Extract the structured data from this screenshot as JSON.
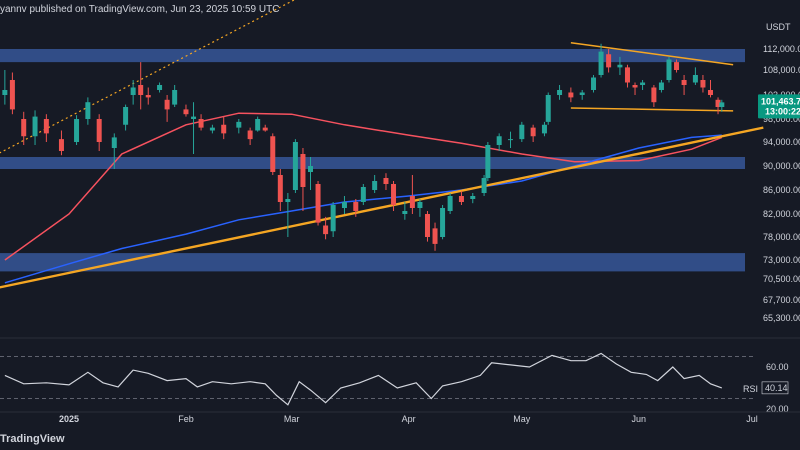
{
  "header": {
    "publish_note": "yannv published on TradingView.com, Jun 23, 2025 10:59 UTC"
  },
  "footer": {
    "brand": "TradingView"
  },
  "colors": {
    "background": "#161a25",
    "bull": "#26a69a",
    "bear": "#ef5350",
    "zone": "#3b5fa8",
    "ma_blue": "#2962ff",
    "ma_orange": "#f7525f",
    "trendline": "#f5a623",
    "rsi": "#d1d4dc",
    "price_tag": "#089981"
  },
  "chart_data": [
    {
      "type": "candlestick",
      "currency_label": "USDT",
      "x_tick_labels": [
        "2025",
        "Feb",
        "Mar",
        "Apr",
        "May",
        "Jun",
        "Jul"
      ],
      "y_tick_labels": [
        "112,000.00",
        "108,000.00",
        "103,000.00",
        "98,000.00",
        "94,000.00",
        "90,000.00",
        "86,000.00",
        "82,000.00",
        "78,000.00",
        "73,000.00",
        "70,500.00",
        "67,700.00",
        "65,300.00"
      ],
      "y_tick_values": [
        112000,
        108000,
        103000,
        98000,
        94000,
        90000,
        86000,
        82000,
        78000,
        73000,
        70500,
        67700,
        65300
      ],
      "last_price_label": "101,463.7",
      "countdown_label": "13:00:22",
      "last_price": 101463.7,
      "resistance_zones": [
        {
          "low": 109500,
          "high": 112000
        },
        {
          "low": 89500,
          "high": 91500
        },
        {
          "low": 71500,
          "high": 74500
        }
      ],
      "pattern": {
        "upper": [
          [
            "2025-05-14",
            112600
          ],
          [
            "2025-06-26",
            109000
          ]
        ],
        "lower": [
          [
            "2025-05-14",
            100300
          ],
          [
            "2025-06-26",
            99700
          ]
        ]
      },
      "ascending_trendline": [
        [
          "2024-12-10",
          69000
        ],
        [
          "2025-07-04",
          96500
        ]
      ],
      "channel_dotted": [
        [
          "2024-12-10",
          91000
        ],
        [
          "2025-04-26",
          127000
        ]
      ],
      "ma_blue": [
        [
          "2024-12-15",
          70000
        ],
        [
          "2025-01-01",
          72500
        ],
        [
          "2025-01-15",
          75500
        ],
        [
          "2025-02-01",
          78500
        ],
        [
          "2025-02-15",
          81000
        ],
        [
          "2025-03-01",
          82500
        ],
        [
          "2025-03-15",
          84000
        ],
        [
          "2025-04-01",
          85000
        ],
        [
          "2025-04-15",
          86000
        ],
        [
          "2025-05-01",
          87500
        ],
        [
          "2025-05-15",
          90000
        ],
        [
          "2025-06-01",
          93000
        ],
        [
          "2025-06-15",
          94800
        ],
        [
          "2025-06-23",
          95200
        ]
      ],
      "ma_orange": [
        [
          "2024-12-15",
          73000
        ],
        [
          "2025-01-01",
          82000
        ],
        [
          "2025-01-15",
          92000
        ],
        [
          "2025-02-01",
          97000
        ],
        [
          "2025-02-15",
          99200
        ],
        [
          "2025-03-01",
          99000
        ],
        [
          "2025-03-15",
          97000
        ],
        [
          "2025-04-01",
          95200
        ],
        [
          "2025-04-15",
          93800
        ],
        [
          "2025-05-01",
          92000
        ],
        [
          "2025-05-15",
          90700
        ],
        [
          "2025-06-01",
          90900
        ],
        [
          "2025-06-15",
          92800
        ],
        [
          "2025-06-23",
          94800
        ]
      ],
      "candles": [
        [
          "2024-12-15",
          103000,
          108000,
          101000,
          104000
        ],
        [
          "2024-12-17",
          106000,
          107500,
          99000,
          100000
        ],
        [
          "2024-12-20",
          98000,
          99500,
          93500,
          95000
        ],
        [
          "2024-12-23",
          95000,
          99800,
          93500,
          98500
        ],
        [
          "2024-12-26",
          98000,
          99000,
          94000,
          95500
        ],
        [
          "2024-12-30",
          94500,
          96000,
          91800,
          92500
        ],
        [
          "2025-01-03",
          94000,
          98800,
          93500,
          98000
        ],
        [
          "2025-01-06",
          98000,
          102500,
          97000,
          101500
        ],
        [
          "2025-01-09",
          98000,
          99000,
          92500,
          94000
        ],
        [
          "2025-01-13",
          93000,
          95500,
          89500,
          94800
        ],
        [
          "2025-01-16",
          97000,
          101000,
          96000,
          100500
        ],
        [
          "2025-01-18",
          103000,
          106000,
          101000,
          104500
        ],
        [
          "2025-01-20",
          105000,
          109500,
          100000,
          103000
        ],
        [
          "2025-01-22",
          103000,
          104500,
          101000,
          102500
        ],
        [
          "2025-01-25",
          104000,
          105500,
          103500,
          105000
        ],
        [
          "2025-01-27",
          102000,
          103000,
          97500,
          100000
        ],
        [
          "2025-01-29",
          101000,
          105000,
          100500,
          104000
        ],
        [
          "2025-02-01",
          100000,
          101000,
          98500,
          99000
        ],
        [
          "2025-02-03",
          98000,
          101500,
          92000,
          98500
        ],
        [
          "2025-02-05",
          98000,
          99000,
          96000,
          96500
        ],
        [
          "2025-02-08",
          96000,
          97000,
          95500,
          96500
        ],
        [
          "2025-02-11",
          97000,
          98500,
          94500,
          95500
        ],
        [
          "2025-02-15",
          96500,
          98000,
          95500,
          97500
        ],
        [
          "2025-02-18",
          96000,
          96500,
          93500,
          94500
        ],
        [
          "2025-02-20",
          96000,
          98500,
          95800,
          98000
        ],
        [
          "2025-02-22",
          96500,
          97000,
          95800,
          96000
        ],
        [
          "2025-02-24",
          95000,
          95500,
          88500,
          89000
        ],
        [
          "2025-02-26",
          88500,
          89500,
          82500,
          84000
        ],
        [
          "2025-02-28",
          84000,
          85500,
          78000,
          84500
        ],
        [
          "2025-03-02",
          86000,
          94500,
          85500,
          94000
        ],
        [
          "2025-03-04",
          92000,
          93000,
          82500,
          86500
        ],
        [
          "2025-03-06",
          89000,
          91500,
          86000,
          90000
        ],
        [
          "2025-03-08",
          87000,
          87500,
          80000,
          80500
        ],
        [
          "2025-03-10",
          80000,
          81500,
          77500,
          78500
        ],
        [
          "2025-03-12",
          79000,
          84000,
          78000,
          83500
        ],
        [
          "2025-03-15",
          83000,
          85000,
          82000,
          84000
        ],
        [
          "2025-03-18",
          84000,
          84500,
          81500,
          82500
        ],
        [
          "2025-03-20",
          84000,
          87000,
          83500,
          86500
        ],
        [
          "2025-03-23",
          86000,
          88500,
          85500,
          87500
        ],
        [
          "2025-03-26",
          88000,
          88800,
          86000,
          87000
        ],
        [
          "2025-03-28",
          87000,
          87500,
          82500,
          83500
        ],
        [
          "2025-03-31",
          82000,
          84000,
          81000,
          82500
        ],
        [
          "2025-04-02",
          85000,
          88500,
          82000,
          83000
        ],
        [
          "2025-04-04",
          83000,
          84500,
          81500,
          84000
        ],
        [
          "2025-04-06",
          82000,
          82500,
          77000,
          78000
        ],
        [
          "2025-04-08",
          79500,
          80500,
          75000,
          76500
        ],
        [
          "2025-04-10",
          78000,
          83500,
          77500,
          83000
        ],
        [
          "2025-04-12",
          82500,
          85500,
          82000,
          85000
        ],
        [
          "2025-04-15",
          85000,
          85800,
          83500,
          84000
        ],
        [
          "2025-04-18",
          84500,
          85500,
          83800,
          85000
        ],
        [
          "2025-04-21",
          85500,
          88500,
          85000,
          88000
        ],
        [
          "2025-04-22",
          88000,
          94000,
          87500,
          93500
        ],
        [
          "2025-04-25",
          93500,
          95500,
          92500,
          95000
        ],
        [
          "2025-04-28",
          94500,
          95800,
          93000,
          94500
        ],
        [
          "2025-05-01",
          94500,
          97500,
          94000,
          97000
        ],
        [
          "2025-05-04",
          96500,
          97000,
          94000,
          95000
        ],
        [
          "2025-05-07",
          95500,
          97500,
          95000,
          97000
        ],
        [
          "2025-05-08",
          97500,
          103500,
          97000,
          103000
        ],
        [
          "2025-05-11",
          103000,
          105000,
          102000,
          104000
        ],
        [
          "2025-05-14",
          103500,
          104500,
          101500,
          102500
        ],
        [
          "2025-05-17",
          103000,
          104000,
          102000,
          103500
        ],
        [
          "2025-05-20",
          104000,
          107000,
          103500,
          106500
        ],
        [
          "2025-05-22",
          107000,
          112500,
          106500,
          111500
        ],
        [
          "2025-05-24",
          111000,
          112000,
          107500,
          108500
        ],
        [
          "2025-05-27",
          108500,
          110500,
          107000,
          109000
        ],
        [
          "2025-05-29",
          108500,
          109000,
          104500,
          105500
        ],
        [
          "2025-05-31",
          105000,
          105500,
          103000,
          104500
        ],
        [
          "2025-06-02",
          105000,
          106000,
          104000,
          105500
        ],
        [
          "2025-06-05",
          104500,
          105000,
          100500,
          101500
        ],
        [
          "2025-06-07",
          104000,
          106000,
          103500,
          105500
        ],
        [
          "2025-06-09",
          106000,
          110500,
          105500,
          110000
        ],
        [
          "2025-06-11",
          109500,
          110000,
          107500,
          108000
        ],
        [
          "2025-06-13",
          106000,
          107000,
          103000,
          105000
        ],
        [
          "2025-06-16",
          105500,
          108500,
          105000,
          107000
        ],
        [
          "2025-06-18",
          106000,
          107000,
          103500,
          104500
        ],
        [
          "2025-06-20",
          104000,
          106000,
          102500,
          103000
        ],
        [
          "2025-06-22",
          102000,
          102500,
          99000,
          100500
        ],
        [
          "2025-06-23",
          100500,
          102000,
          99500,
          101463.7
        ]
      ]
    },
    {
      "type": "line",
      "indicator_label": "RSI",
      "value_label": "40.14",
      "value": 40.14,
      "y_tick_labels": [
        "60.00",
        "40.00",
        "20.00"
      ],
      "y_tick_values": [
        60,
        40,
        20
      ],
      "levels": [
        70,
        30
      ],
      "values": [
        [
          "2024-12-15",
          52
        ],
        [
          "2024-12-20",
          44
        ],
        [
          "2024-12-26",
          45
        ],
        [
          "2025-01-01",
          43
        ],
        [
          "2025-01-06",
          55
        ],
        [
          "2025-01-10",
          45
        ],
        [
          "2025-01-14",
          41
        ],
        [
          "2025-01-18",
          57
        ],
        [
          "2025-01-22",
          54
        ],
        [
          "2025-01-27",
          47
        ],
        [
          "2025-02-01",
          49
        ],
        [
          "2025-02-04",
          41
        ],
        [
          "2025-02-08",
          46
        ],
        [
          "2025-02-13",
          44
        ],
        [
          "2025-02-18",
          46
        ],
        [
          "2025-02-22",
          44
        ],
        [
          "2025-02-25",
          33
        ],
        [
          "2025-02-28",
          24
        ],
        [
          "2025-03-03",
          46
        ],
        [
          "2025-03-06",
          38
        ],
        [
          "2025-03-10",
          26
        ],
        [
          "2025-03-14",
          40
        ],
        [
          "2025-03-19",
          45
        ],
        [
          "2025-03-24",
          52
        ],
        [
          "2025-03-29",
          40
        ],
        [
          "2025-04-03",
          45
        ],
        [
          "2025-04-07",
          30
        ],
        [
          "2025-04-10",
          42
        ],
        [
          "2025-04-15",
          46
        ],
        [
          "2025-04-20",
          52
        ],
        [
          "2025-04-23",
          64
        ],
        [
          "2025-04-28",
          62
        ],
        [
          "2025-05-03",
          60
        ],
        [
          "2025-05-09",
          71
        ],
        [
          "2025-05-14",
          66
        ],
        [
          "2025-05-18",
          66
        ],
        [
          "2025-05-22",
          73
        ],
        [
          "2025-05-26",
          63
        ],
        [
          "2025-05-30",
          55
        ],
        [
          "2025-06-03",
          53
        ],
        [
          "2025-06-06",
          47
        ],
        [
          "2025-06-10",
          60
        ],
        [
          "2025-06-13",
          49
        ],
        [
          "2025-06-17",
          52
        ],
        [
          "2025-06-20",
          44
        ],
        [
          "2025-06-23",
          40.14
        ]
      ]
    }
  ]
}
